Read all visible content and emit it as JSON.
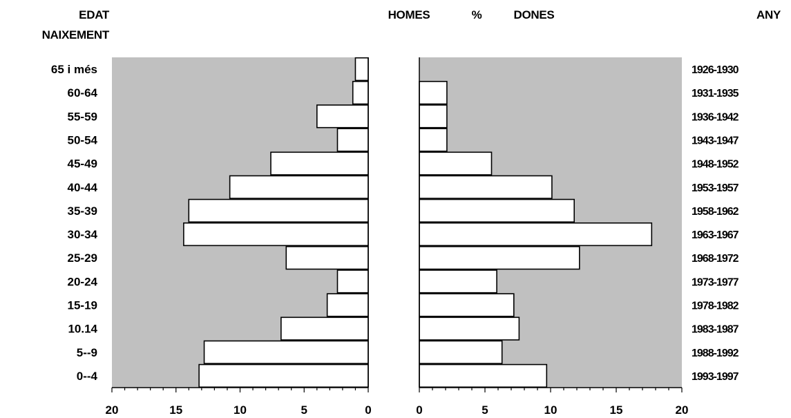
{
  "chart_data": {
    "type": "bar",
    "orientation": "horizontal",
    "subtype": "population-pyramid",
    "headers": {
      "left_top": "EDAT",
      "left_bottom": "NAIXEMENT",
      "men": "HOMES",
      "percent": "%",
      "women": "DONES",
      "right": "ANY"
    },
    "age_groups": [
      "65 i més",
      "60-64",
      "55-59",
      "50-54",
      "45-49",
      "40-44",
      "35-39",
      "30-34",
      "25-29",
      "20-24",
      "15-19",
      "10.14",
      "5--9",
      "0--4"
    ],
    "birth_years": [
      "1926-1930",
      "1931-1935",
      "1936-1942",
      "1943-1947",
      "1948-1952",
      "1953-1957",
      "1958-1962",
      "1963-1967",
      "1968-1972",
      "1973-1977",
      "1978-1982",
      "1983-1987",
      "1988-1992",
      "1993-1997"
    ],
    "series": [
      {
        "name": "HOMES",
        "values": [
          1.0,
          1.2,
          4.0,
          2.4,
          7.6,
          10.8,
          14.0,
          14.4,
          6.4,
          2.4,
          3.2,
          6.8,
          12.8,
          13.2
        ]
      },
      {
        "name": "DONES",
        "values": [
          0.0,
          2.1,
          2.1,
          2.1,
          5.5,
          10.1,
          11.8,
          17.7,
          12.2,
          5.9,
          7.2,
          7.6,
          6.3,
          9.7
        ]
      }
    ],
    "left_axis": {
      "ticks": [
        20,
        15,
        10,
        5,
        0
      ],
      "range": [
        20,
        0
      ]
    },
    "right_axis": {
      "ticks": [
        0,
        5,
        10,
        15,
        20
      ],
      "range": [
        0,
        20
      ]
    },
    "colors": {
      "plot_background": "#c0c0c0",
      "bar_fill": "#ffffff",
      "bar_stroke": "#000000"
    }
  }
}
